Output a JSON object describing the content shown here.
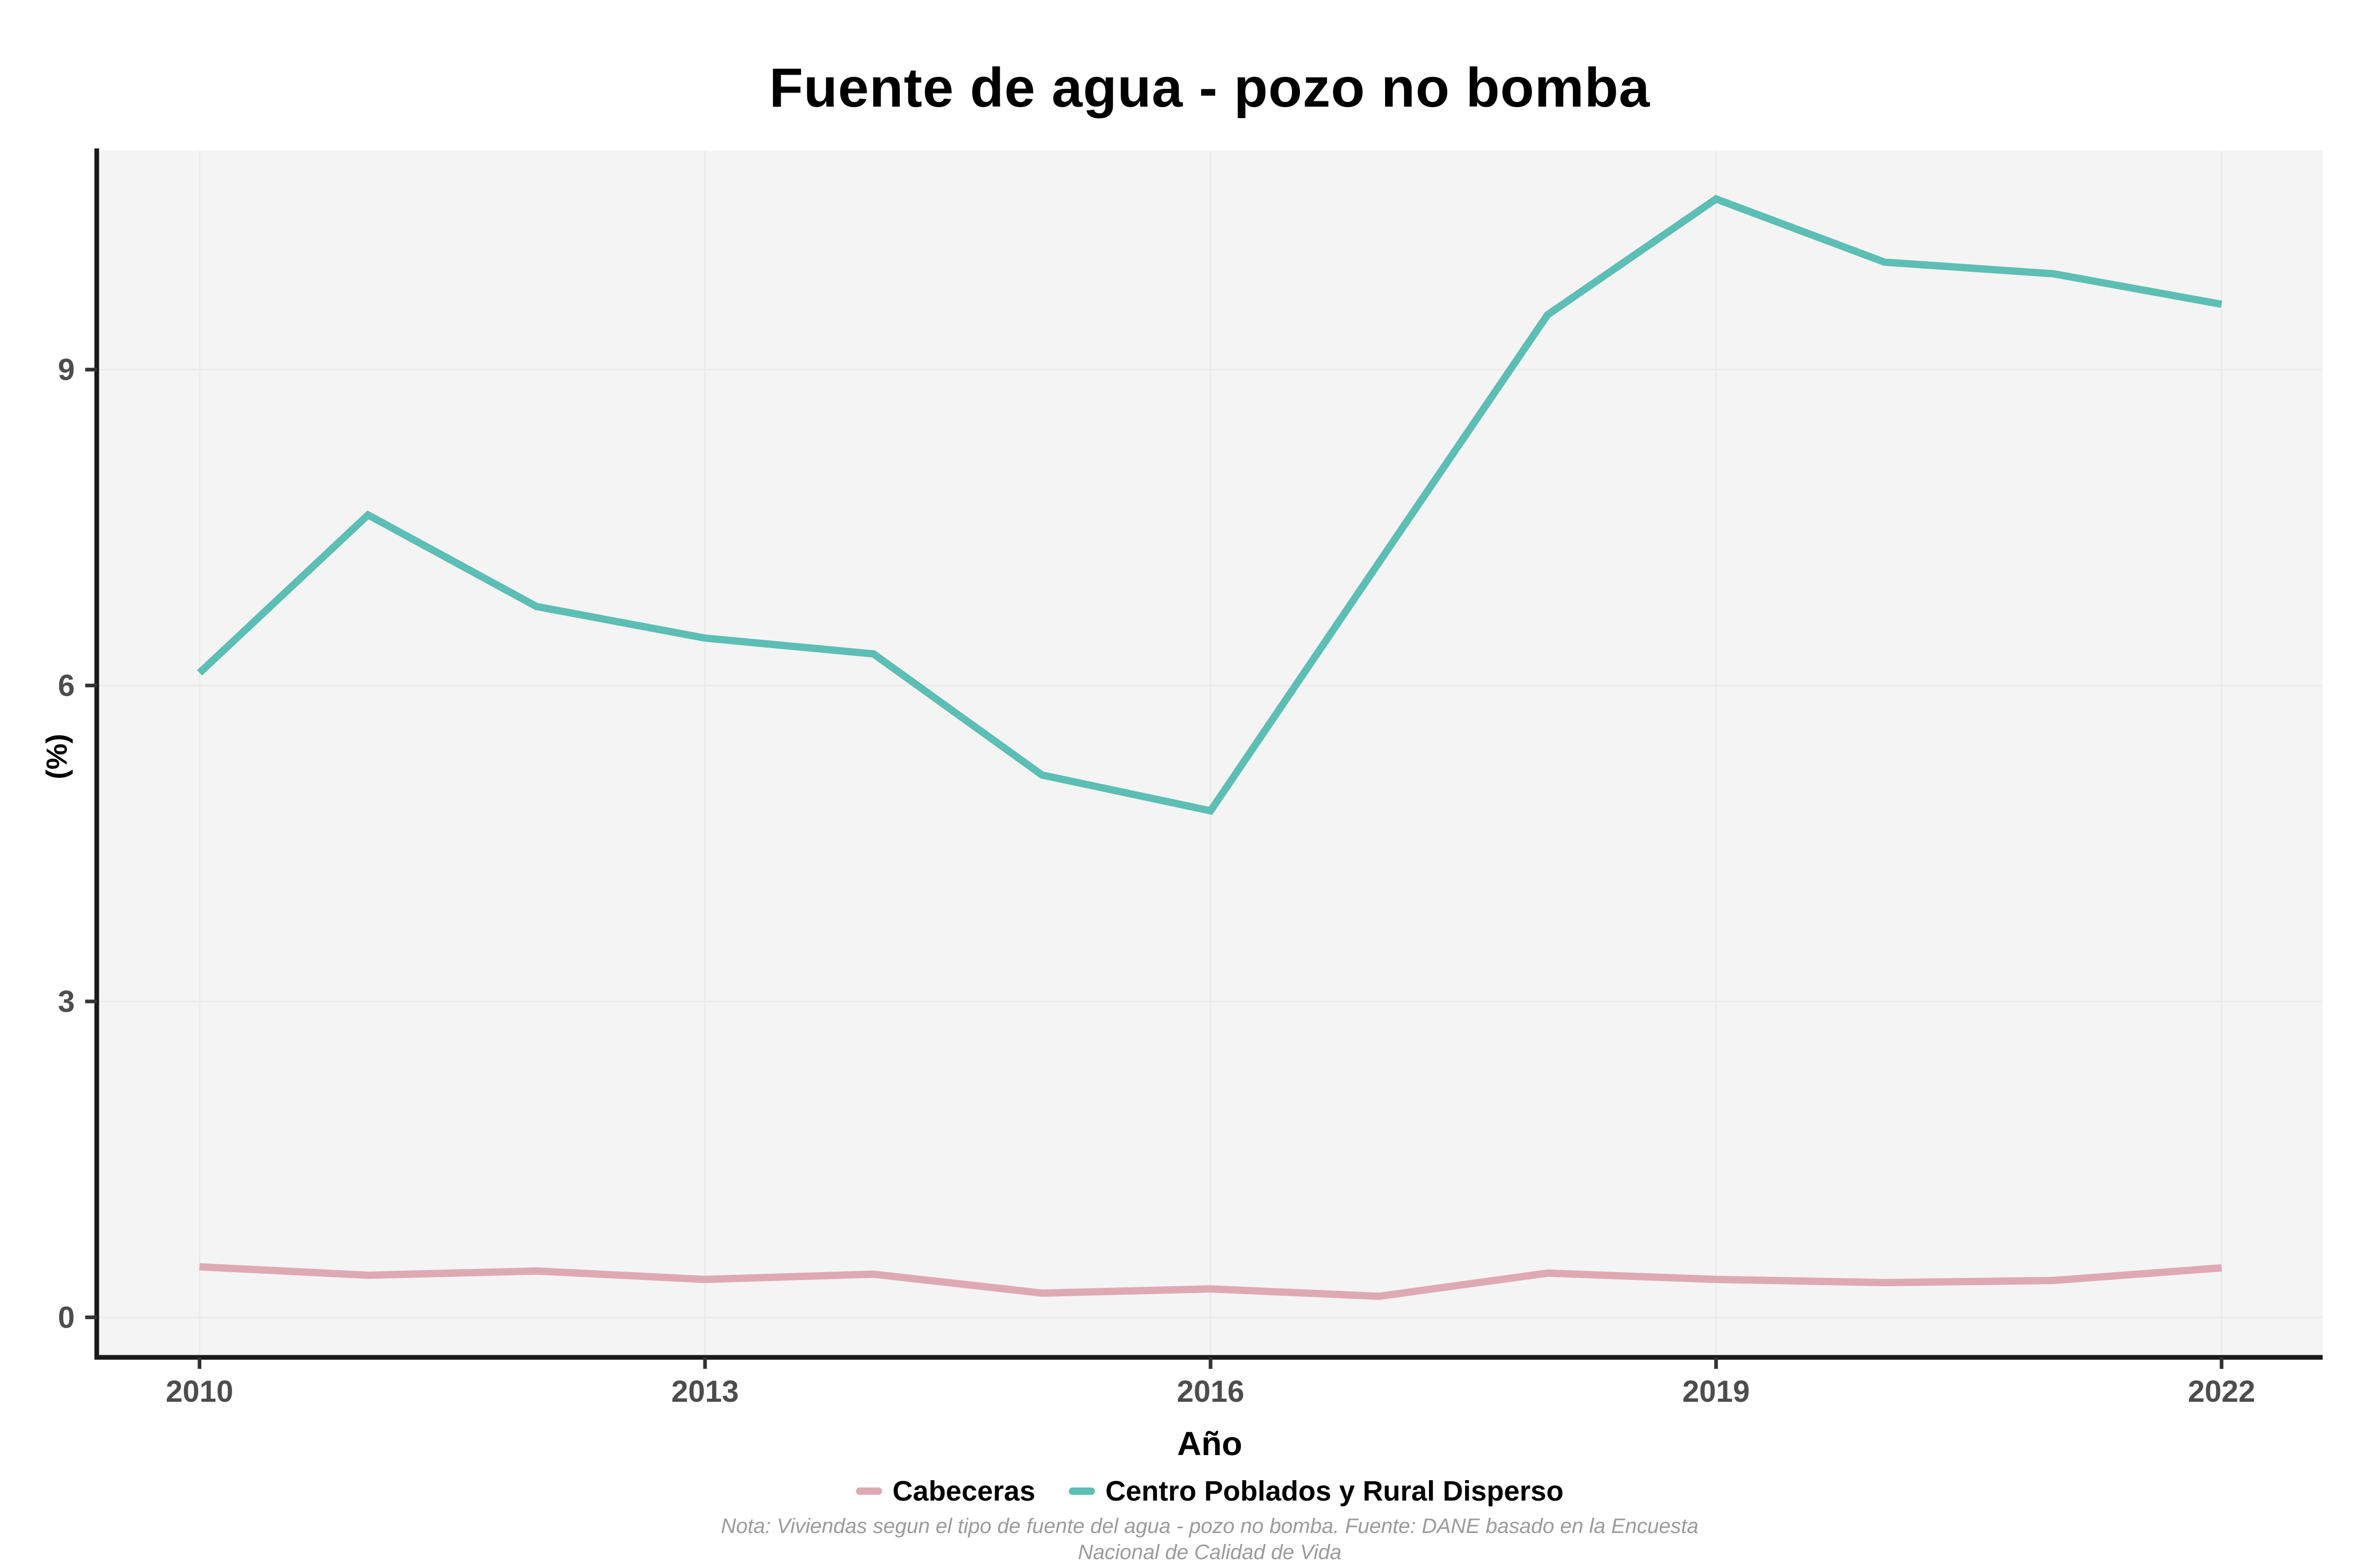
{
  "title": "Fuente de agua - pozo no bomba",
  "axes": {
    "x_label": "Año",
    "y_label": "(%)"
  },
  "legend": [
    {
      "label": "Cabeceras",
      "color": "#dfa9b3"
    },
    {
      "label": "Centro Poblados y Rural Disperso",
      "color": "#5cbeb4"
    }
  ],
  "notes": {
    "line1": "Nota: Viviendas segun el tipo de fuente del agua - pozo no bomba. Fuente: DANE basado en la Encuesta",
    "line2": "Nacional de Calidad de Vida"
  },
  "chart_data": {
    "type": "line",
    "title": "Fuente de agua - pozo no bomba",
    "xlabel": "Año",
    "ylabel": "(%)",
    "x": [
      2010,
      2011,
      2012,
      2013,
      2014,
      2015,
      2016,
      2017,
      2018,
      2019,
      2020,
      2021,
      2022
    ],
    "series": [
      {
        "name": "Cabeceras",
        "color": "#dfa9b3",
        "values": [
          0.48,
          0.4,
          0.44,
          0.36,
          0.41,
          0.23,
          0.27,
          0.2,
          0.42,
          0.36,
          0.33,
          0.35,
          0.47
        ]
      },
      {
        "name": "Centro Poblados y Rural Disperso",
        "color": "#5cbeb4",
        "values": [
          6.12,
          7.62,
          6.75,
          6.45,
          6.3,
          5.15,
          4.81,
          7.17,
          9.52,
          10.62,
          10.02,
          9.91,
          9.62
        ]
      }
    ],
    "xticks": [
      2010,
      2013,
      2016,
      2019,
      2022
    ],
    "yticks": [
      0,
      3,
      6,
      9
    ],
    "xlim": [
      2009.39,
      2022.6
    ],
    "ylim": [
      -0.38,
      11.08
    ],
    "grid": true,
    "legend_position": "bottom",
    "panel_bg": "#f4f4f4",
    "grid_color": "#ebebeb",
    "axis_color": "#1a1a1a",
    "tick_color": "#333333",
    "tick_text_color": "#4d4d4d"
  }
}
